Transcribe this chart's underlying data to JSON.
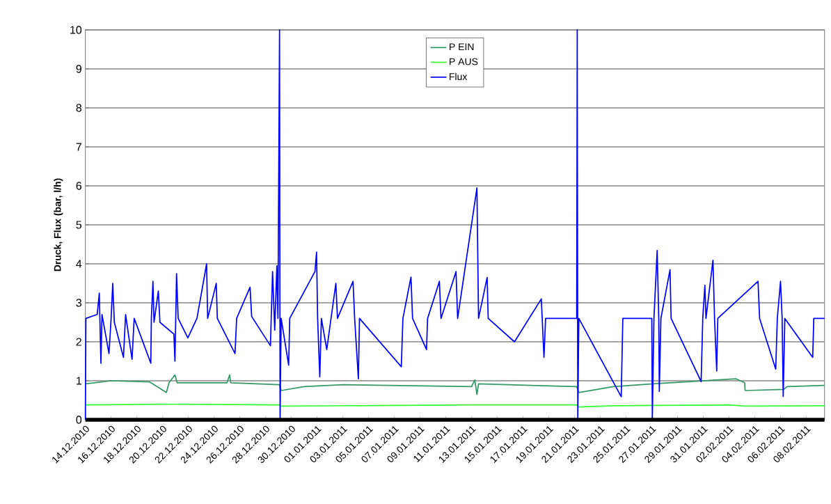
{
  "chart_data": {
    "type": "line",
    "ylabel": "Druck, Flux (bar, l/h)",
    "xlim": [
      "2010-12-14T00:00",
      "2011-02-09T10:00"
    ],
    "ylim": [
      0,
      10
    ],
    "yticks": [
      0,
      1,
      2,
      3,
      4,
      5,
      6,
      7,
      8,
      9,
      10
    ],
    "xticks": [
      {
        "value": "2010-12-14",
        "label": "14.12.2010"
      },
      {
        "value": "2010-12-16",
        "label": "16.12.2010"
      },
      {
        "value": "2010-12-18",
        "label": "18.12.2010"
      },
      {
        "value": "2010-12-20",
        "label": "20.12.2010"
      },
      {
        "value": "2010-12-22",
        "label": "22.12.2010"
      },
      {
        "value": "2010-12-24",
        "label": "24.12.2010"
      },
      {
        "value": "2010-12-26",
        "label": "26.12.2010"
      },
      {
        "value": "2010-12-28",
        "label": "28.12.2010"
      },
      {
        "value": "2010-12-30",
        "label": "30.12.2010"
      },
      {
        "value": "2011-01-01",
        "label": "01.01.2011"
      },
      {
        "value": "2011-01-03",
        "label": "03.01.2011"
      },
      {
        "value": "2011-01-05",
        "label": "05.01.2011"
      },
      {
        "value": "2011-01-07",
        "label": "07.01.2011"
      },
      {
        "value": "2011-01-09",
        "label": "09.01.2011"
      },
      {
        "value": "2011-01-11",
        "label": "11.01.2011"
      },
      {
        "value": "2011-01-13",
        "label": "13.01.2011"
      },
      {
        "value": "2011-01-15",
        "label": "15.01.2011"
      },
      {
        "value": "2011-01-17",
        "label": "17.01.2011"
      },
      {
        "value": "2011-01-19",
        "label": "19.01.2011"
      },
      {
        "value": "2011-01-21",
        "label": "21.01.2011"
      },
      {
        "value": "2011-01-23",
        "label": "23.01.2011"
      },
      {
        "value": "2011-01-25",
        "label": "25.01.2011"
      },
      {
        "value": "2011-01-27",
        "label": "27.01.2011"
      },
      {
        "value": "2011-01-29",
        "label": "29.01.2011"
      },
      {
        "value": "2011-01-31",
        "label": "31.01.2011"
      },
      {
        "value": "2011-02-02",
        "label": "02.02.2011"
      },
      {
        "value": "2011-02-04",
        "label": "04.02.2011"
      },
      {
        "value": "2011-02-06",
        "label": "06.02.2011"
      },
      {
        "value": "2011-02-08",
        "label": "08.02.2011"
      }
    ],
    "grid": "y",
    "legend": "top",
    "line_style": "solid",
    "marker": "none",
    "series": [
      {
        "name": "P EIN",
        "color": "#339966",
        "x": [
          "2010-12-14T01:00",
          "2010-12-16T00:00",
          "2010-12-19T00:00",
          "2010-12-20T07:00",
          "2010-12-20T12:00",
          "2010-12-20T23:00",
          "2010-12-21T03:00",
          "2010-12-25T00:00",
          "2010-12-25T05:00",
          "2010-12-25T07:00",
          "2010-12-29T02:00",
          "2010-12-29T05:00",
          "2010-12-31T00:00",
          "2011-01-03T00:00",
          "2011-01-13T00:00",
          "2011-01-13T06:00",
          "2011-01-13T10:00",
          "2011-01-13T13:00",
          "2011-01-21T04:00",
          "2011-01-21T08:00",
          "2011-01-24T00:00",
          "2011-01-27T12:00",
          "2011-02-02T13:00",
          "2011-02-03T05:00",
          "2011-02-03T06:00",
          "2011-02-06T06:00",
          "2011-02-06T12:00",
          "2011-02-09T10:00"
        ],
        "values": [
          0.92,
          1.0,
          0.97,
          0.7,
          0.95,
          1.15,
          0.95,
          0.95,
          1.15,
          0.95,
          0.9,
          0.75,
          0.85,
          0.9,
          0.85,
          1.02,
          0.65,
          0.92,
          0.85,
          0.7,
          0.85,
          0.93,
          1.05,
          0.95,
          0.75,
          0.78,
          0.85,
          0.88
        ]
      },
      {
        "name": "P AUS",
        "color": "#33ff33",
        "x": [
          "2010-12-14T00:00",
          "2010-12-20T00:00",
          "2010-12-29T02:00",
          "2010-12-29T05:00",
          "2011-01-13T00:00",
          "2011-01-21T04:00",
          "2011-01-21T08:00",
          "2011-01-24T00:00",
          "2011-02-02T00:00",
          "2011-02-03T06:00",
          "2011-02-09T10:00"
        ],
        "values": [
          0.38,
          0.4,
          0.38,
          0.35,
          0.38,
          0.38,
          0.33,
          0.36,
          0.38,
          0.35,
          0.36
        ]
      },
      {
        "name": "Flux",
        "color": "#0000ff",
        "x": [
          "2010-12-14T00:00",
          "2010-12-14T01:00",
          "2010-12-14T22:00",
          "2010-12-15T02:00",
          "2010-12-15T03:00",
          "2010-12-15T05:00",
          "2010-12-15T07:00",
          "2010-12-15T20:00",
          "2010-12-16T00:00",
          "2010-12-16T03:00",
          "2010-12-16T06:00",
          "2010-12-16T23:00",
          "2010-12-17T03:00",
          "2010-12-17T15:00",
          "2010-12-17T19:00",
          "2010-12-19T02:00",
          "2010-12-19T03:00",
          "2010-12-19T06:00",
          "2010-12-19T08:00",
          "2010-12-19T16:00",
          "2010-12-19T19:00",
          "2010-12-20T21:00",
          "2010-12-20T23:00",
          "2010-12-21T02:00",
          "2010-12-21T05:00",
          "2010-12-21T23:00",
          "2010-12-22T16:00",
          "2010-12-23T10:00",
          "2010-12-23T12:00",
          "2010-12-24T04:00",
          "2010-12-24T06:00",
          "2010-12-25T15:00",
          "2010-12-25T18:00",
          "2010-12-26T19:00",
          "2010-12-26T22:00",
          "2010-12-28T09:00",
          "2010-12-28T13:00",
          "2010-12-28T17:00",
          "2010-12-28T21:00",
          "2010-12-28T23:00",
          "2010-12-29T02:00",
          "2010-12-29T03:00",
          "2010-12-29T05:00",
          "2010-12-29T19:00",
          "2010-12-29T21:00",
          "2010-12-31T20:00",
          "2010-12-31T23:00",
          "2011-01-01T01:00",
          "2011-01-01T05:00",
          "2011-01-01T08:00",
          "2011-01-01T18:00",
          "2011-01-02T11:00",
          "2011-01-02T14:00",
          "2011-01-03T19:00",
          "2011-01-03T22:00",
          "2011-01-04T05:00",
          "2011-01-04T07:00",
          "2011-01-07T13:00",
          "2011-01-07T16:00",
          "2011-01-08T07:00",
          "2011-01-08T10:00",
          "2011-01-09T12:00",
          "2011-01-09T14:00",
          "2011-01-10T12:00",
          "2011-01-10T15:00",
          "2011-01-11T19:00",
          "2011-01-11T22:00",
          "2011-01-13T10:00",
          "2011-01-13T13:00",
          "2011-01-14T05:00",
          "2011-01-14T07:00",
          "2011-01-16T08:00",
          "2011-01-18T10:00",
          "2011-01-18T15:00",
          "2011-01-18T18:00",
          "2011-01-21T04:00",
          "2011-01-21T05:00",
          "2011-01-21T06:00",
          "2011-01-21T08:00",
          "2011-01-24T15:00",
          "2011-01-24T18:00",
          "2011-01-27T00:00",
          "2011-01-27T01:00",
          "2011-01-27T04:00",
          "2011-01-27T10:00",
          "2011-01-27T13:00",
          "2011-01-27T14:00",
          "2011-01-27T17:00",
          "2011-01-28T10:00",
          "2011-01-28T12:00",
          "2011-01-30T20:00",
          "2011-01-30T23:00",
          "2011-01-31T03:00",
          "2011-01-31T05:00",
          "2011-01-31T18:00",
          "2011-01-31T21:00",
          "2011-02-01T01:00",
          "2011-02-01T03:00",
          "2011-02-04T06:00",
          "2011-02-04T09:00",
          "2011-02-05T15:00",
          "2011-02-05T18:00",
          "2011-02-06T00:00",
          "2011-02-06T03:00",
          "2011-02-06T05:00",
          "2011-02-06T08:00",
          "2011-02-08T12:00",
          "2011-02-08T14:00",
          "2011-02-09T10:00"
        ],
        "values": [
          0,
          2.6,
          2.7,
          3.25,
          2.6,
          1.45,
          2.7,
          1.7,
          2.6,
          3.5,
          2.5,
          1.6,
          2.7,
          1.55,
          2.6,
          1.45,
          2.6,
          3.55,
          2.5,
          3.3,
          2.5,
          2.2,
          1.5,
          3.75,
          2.6,
          2.1,
          2.6,
          4.0,
          2.6,
          3.5,
          2.6,
          1.7,
          2.6,
          3.4,
          2.65,
          1.9,
          3.8,
          2.3,
          3.95,
          2.6,
          10,
          0,
          2.6,
          1.4,
          2.6,
          3.8,
          4.3,
          2.6,
          1.1,
          2.6,
          1.8,
          3.5,
          2.6,
          3.55,
          2.6,
          1.05,
          2.6,
          1.36,
          2.6,
          3.66,
          2.6,
          1.8,
          2.6,
          3.55,
          2.6,
          3.8,
          2.6,
          5.95,
          2.6,
          3.65,
          2.6,
          2.0,
          3.1,
          1.6,
          2.6,
          2.6,
          10,
          0,
          2.6,
          0.59,
          2.6,
          2.6,
          0,
          2.6,
          4.34,
          2.6,
          0.73,
          2.6,
          3.85,
          2.6,
          0.98,
          2.6,
          3.45,
          2.6,
          4.09,
          2.6,
          1.25,
          2.6,
          3.55,
          2.6,
          1.3,
          2.6,
          3.55,
          2.6,
          0.6,
          2.6,
          1.6,
          2.6,
          2.6
        ]
      }
    ]
  }
}
